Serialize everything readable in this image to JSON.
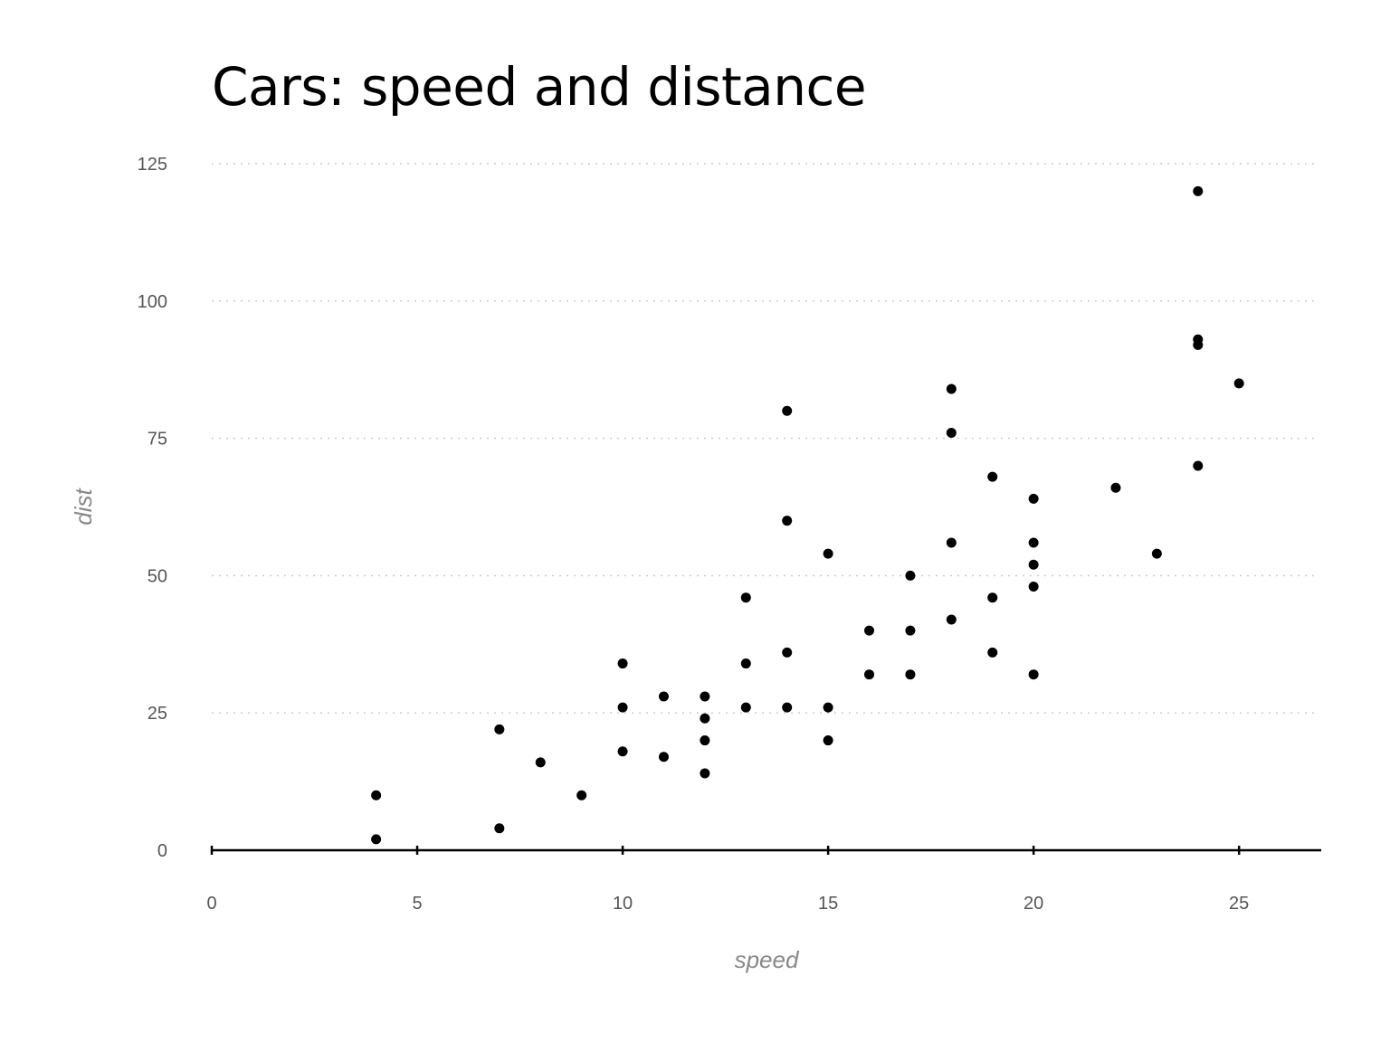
{
  "chart_data": {
    "type": "scatter",
    "title": "Cars: speed and distance",
    "xlabel": "speed",
    "ylabel": "dist",
    "xlim": [
      0,
      27
    ],
    "ylim": [
      0,
      125
    ],
    "xticks": [
      0,
      5,
      10,
      15,
      20,
      25
    ],
    "yticks": [
      0,
      25,
      50,
      75,
      100,
      125
    ],
    "grid": "horizontal-dotted",
    "colors": {
      "points": "#000000",
      "grid": "#cccccc",
      "ticks": "#555555",
      "axis_title": "#888888"
    },
    "series": [
      {
        "points": [
          [
            4,
            2
          ],
          [
            4,
            10
          ],
          [
            7,
            4
          ],
          [
            7,
            22
          ],
          [
            8,
            16
          ],
          [
            9,
            10
          ],
          [
            10,
            18
          ],
          [
            10,
            26
          ],
          [
            10,
            34
          ],
          [
            11,
            17
          ],
          [
            11,
            28
          ],
          [
            12,
            14
          ],
          [
            12,
            20
          ],
          [
            12,
            24
          ],
          [
            12,
            28
          ],
          [
            13,
            26
          ],
          [
            13,
            34
          ],
          [
            13,
            46
          ],
          [
            14,
            26
          ],
          [
            14,
            36
          ],
          [
            14,
            60
          ],
          [
            14,
            80
          ],
          [
            15,
            20
          ],
          [
            15,
            26
          ],
          [
            15,
            54
          ],
          [
            16,
            32
          ],
          [
            16,
            40
          ],
          [
            17,
            32
          ],
          [
            17,
            40
          ],
          [
            17,
            50
          ],
          [
            18,
            42
          ],
          [
            18,
            56
          ],
          [
            18,
            76
          ],
          [
            18,
            84
          ],
          [
            19,
            36
          ],
          [
            19,
            46
          ],
          [
            19,
            68
          ],
          [
            20,
            32
          ],
          [
            20,
            48
          ],
          [
            20,
            52
          ],
          [
            20,
            56
          ],
          [
            20,
            64
          ],
          [
            22,
            66
          ],
          [
            23,
            54
          ],
          [
            24,
            70
          ],
          [
            24,
            92
          ],
          [
            24,
            93
          ],
          [
            24,
            120
          ],
          [
            25,
            85
          ]
        ]
      }
    ]
  }
}
